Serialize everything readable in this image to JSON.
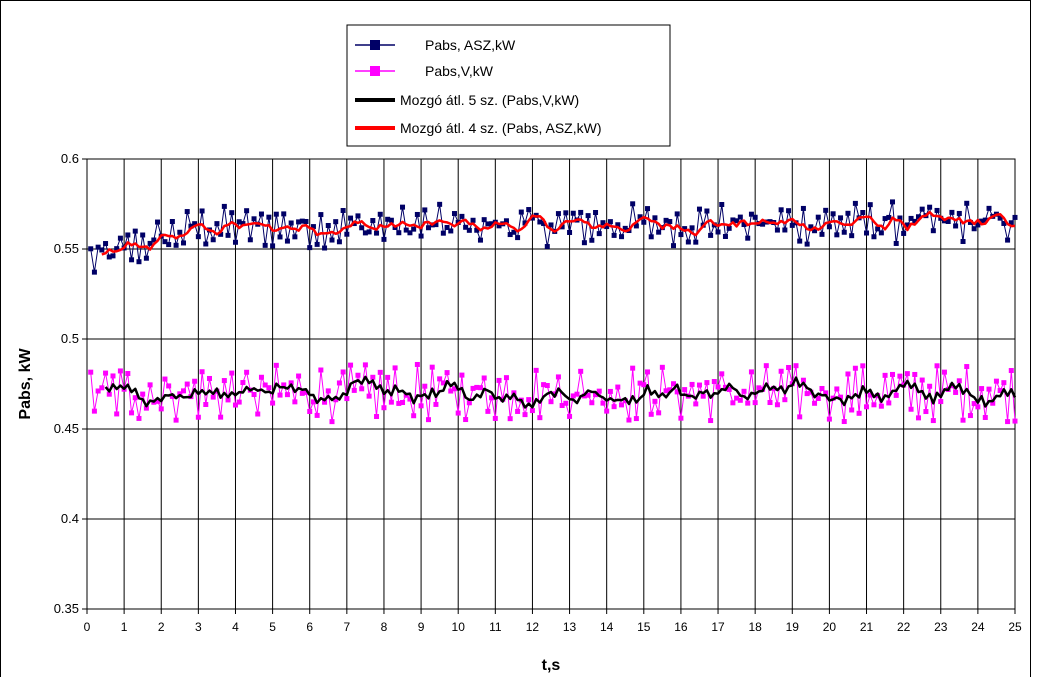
{
  "chart_data": {
    "type": "line",
    "title": "",
    "xlabel": "t,s",
    "ylabel": "Pabs, kW",
    "xlim": [
      0,
      25
    ],
    "ylim": [
      0.35,
      0.6
    ],
    "x_ticks": [
      0,
      1,
      2,
      3,
      4,
      5,
      6,
      7,
      8,
      9,
      10,
      11,
      12,
      13,
      14,
      15,
      16,
      17,
      18,
      19,
      20,
      21,
      22,
      23,
      24,
      25
    ],
    "y_ticks": [
      0.35,
      0.4,
      0.45,
      0.5,
      0.55,
      0.6
    ],
    "y_tick_labels": [
      "0.35",
      "0.4",
      "0.45",
      "0.5",
      "0.55",
      "0.6"
    ],
    "grid": true,
    "legend_position": "top-center",
    "sample_interval_s": 0.1,
    "series": [
      {
        "name": "Pabs, ASZ,kW",
        "color": "#000066",
        "marker": "square",
        "x": [
          0.1,
          25.0
        ],
        "approx_level_start": 0.543,
        "approx_level_end": 0.565,
        "approx_level_mid": 0.562,
        "approx_noise_range": [
          0.552,
          0.584
        ]
      },
      {
        "name": "Pabs,V,kW",
        "color": "#ff00ff",
        "marker": "square",
        "x": [
          0.1,
          25.0
        ],
        "approx_level": 0.47,
        "approx_noise_range": [
          0.46,
          0.491
        ]
      },
      {
        "name": "Mozgó átl. 5 sz. (Pabs,V,kW)",
        "color": "#000000",
        "marker": "none",
        "x": [
          0.5,
          25.0
        ],
        "approx_level": 0.47,
        "approx_range": [
          0.466,
          0.476
        ]
      },
      {
        "name": "Mozgó átl. 4 sz. (Pabs, ASZ,kW)",
        "color": "#ff0000",
        "marker": "none",
        "x": [
          0.4,
          25.0
        ],
        "approx_level_start": 0.548,
        "approx_level_end": 0.57,
        "approx_range": [
          0.548,
          0.571
        ]
      }
    ]
  }
}
